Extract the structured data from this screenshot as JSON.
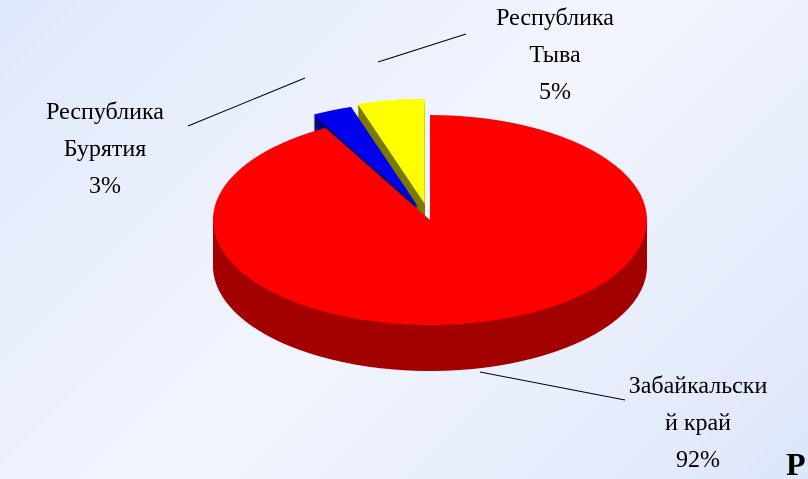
{
  "chart_data": {
    "type": "pie",
    "categories": [
      "Забайкальский край",
      "Республика Бурятия",
      "Республика Тыва"
    ],
    "values": [
      92,
      3,
      5
    ],
    "value_labels": [
      "92%",
      "3%",
      "5%"
    ],
    "colors": [
      "#ff0000",
      "#0000ee",
      "#ffff00"
    ],
    "side_colors": [
      "#a30000",
      "#00007a",
      "#7a7a00"
    ]
  },
  "page_fragment": "Р"
}
